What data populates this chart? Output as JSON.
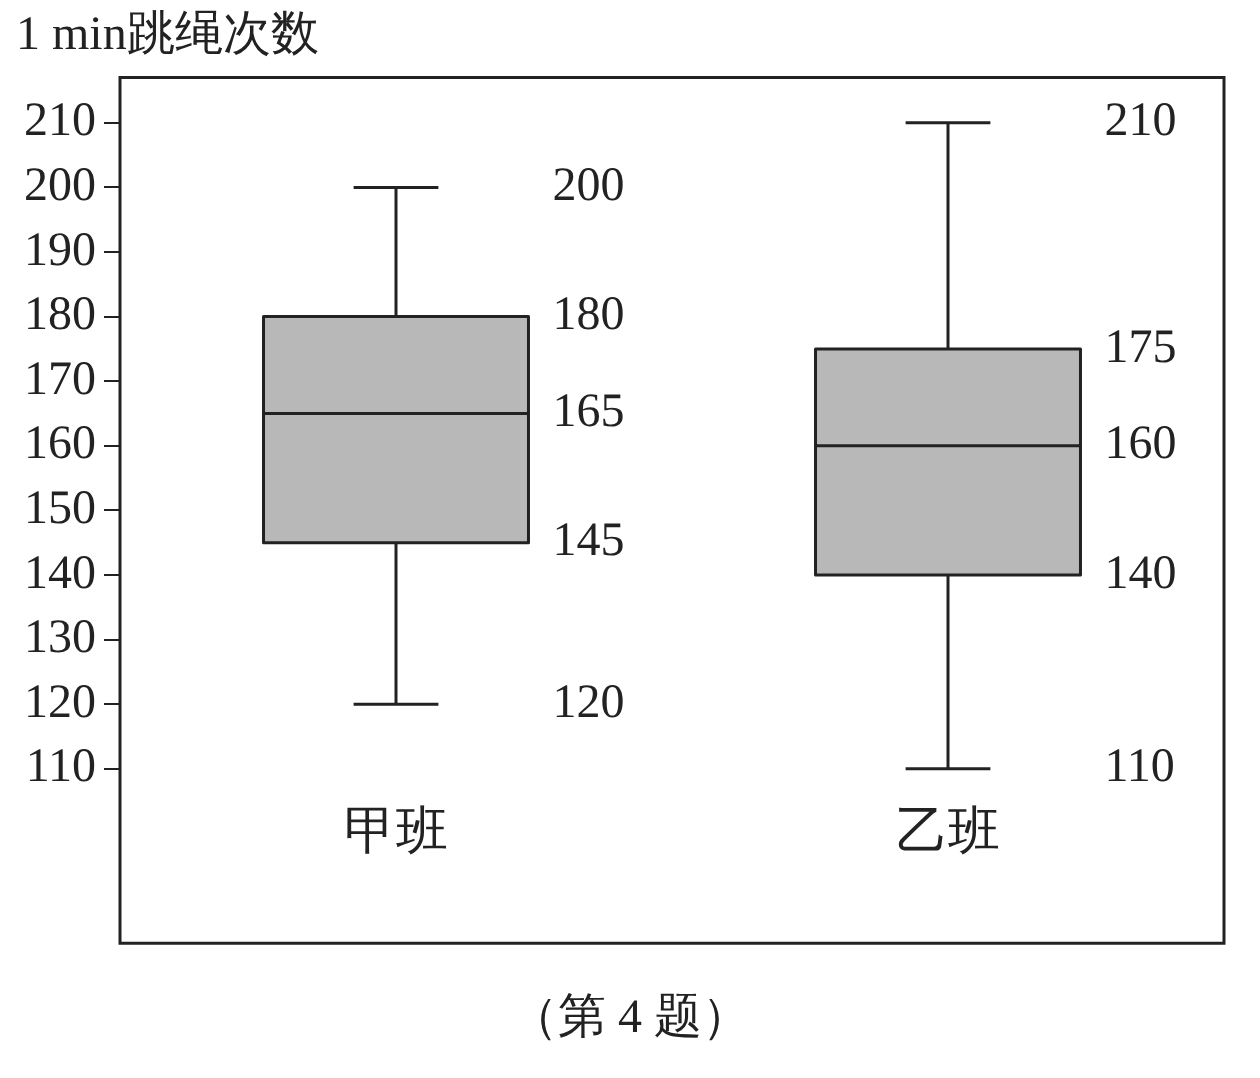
{
  "chart_data": {
    "type": "box",
    "title": "1 min跳绳次数",
    "categories": [
      "甲班",
      "乙班"
    ],
    "boxes": [
      {
        "low": 120,
        "q1": 145,
        "median": 165,
        "q3": 180,
        "high": 200
      },
      {
        "low": 110,
        "q1": 140,
        "median": 160,
        "q3": 175,
        "high": 210
      }
    ],
    "color": "#b8b8b8",
    "ylim": [
      83,
      217
    ],
    "yticks": [
      110,
      120,
      130,
      140,
      150,
      160,
      170,
      180,
      190,
      200,
      210
    ],
    "grid": false,
    "legend": false,
    "annotations": [
      "（第 4 题）",
      "200",
      "180",
      "165",
      "145",
      "120",
      "210",
      "175",
      "160",
      "140",
      "110"
    ]
  }
}
